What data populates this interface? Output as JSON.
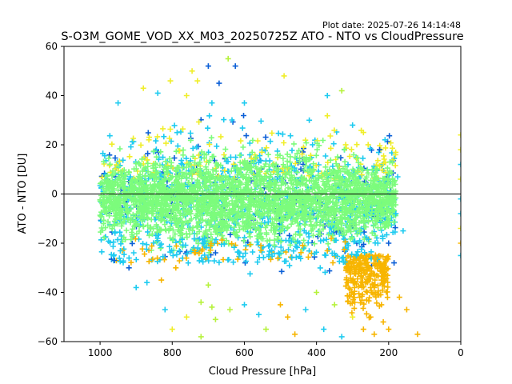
{
  "plot_date": "Plot date: 2025-07-26 14:14:48",
  "chart_data": {
    "type": "scatter",
    "title": "S-O3M_GOME_VOD_XX_M03_20250725Z ATO - NTO vs CloudPressure",
    "xlabel": "Cloud Pressure [hPa]",
    "ylabel": "ATO - NTO [DU]",
    "xlim": [
      1100,
      0
    ],
    "ylim": [
      -60,
      60
    ],
    "x_ticks": [
      1000,
      800,
      600,
      400,
      200,
      0
    ],
    "y_ticks": [
      -60,
      -40,
      -20,
      0,
      20,
      40,
      60
    ],
    "reference_line_y": 0,
    "marker": "+",
    "grid": false,
    "colors": {
      "bulk": "#7cfc7c",
      "cyan": "#1ecbf0",
      "blue": "#0b5fd6",
      "yellow": "#f0ee2a",
      "orange": "#f7b500",
      "lime": "#b6f23c",
      "reference_line": "#000000"
    },
    "clusters": [
      {
        "name": "",
        "color_key": "bulk",
        "x_range": [
          1000,
          200
        ],
        "y_range": [
          -15,
          15
        ]
      },
      {
        "name": "",
        "color_key": "cyan",
        "x_range": [
          1000,
          170
        ],
        "y_range": [
          -25,
          25
        ]
      },
      {
        "name": "",
        "color_key": "orange",
        "x_range": [
          320,
          200
        ],
        "y_range": [
          -50,
          -25
        ]
      }
    ],
    "points": [
      {
        "x": 700,
        "y": 52,
        "c": "blue"
      },
      {
        "x": 625,
        "y": 52,
        "c": "blue"
      },
      {
        "x": 645,
        "y": 55,
        "c": "lime"
      },
      {
        "x": 745,
        "y": 50,
        "c": "yellow"
      },
      {
        "x": 490,
        "y": 48,
        "c": "yellow"
      },
      {
        "x": 670,
        "y": 45,
        "c": "blue"
      },
      {
        "x": 730,
        "y": 46,
        "c": "yellow"
      },
      {
        "x": 880,
        "y": 43,
        "c": "yellow"
      },
      {
        "x": 805,
        "y": 46,
        "c": "yellow"
      },
      {
        "x": 330,
        "y": 42,
        "c": "lime"
      },
      {
        "x": 370,
        "y": 40,
        "c": "cyan"
      },
      {
        "x": 760,
        "y": 40,
        "c": "yellow"
      },
      {
        "x": 840,
        "y": 41,
        "c": "cyan"
      },
      {
        "x": 600,
        "y": 37,
        "c": "cyan"
      },
      {
        "x": 690,
        "y": 37,
        "c": "cyan"
      },
      {
        "x": 950,
        "y": 37,
        "c": "cyan"
      },
      {
        "x": 420,
        "y": 30,
        "c": "cyan"
      },
      {
        "x": 300,
        "y": 28,
        "c": "cyan"
      },
      {
        "x": 270,
        "y": 25,
        "c": "yellow"
      },
      {
        "x": 210,
        "y": 22,
        "c": "cyan"
      },
      {
        "x": 225,
        "y": 18,
        "c": "blue"
      },
      {
        "x": 175,
        "y": 7,
        "c": "cyan"
      },
      {
        "x": 180,
        "y": -8,
        "c": "cyan"
      },
      {
        "x": 160,
        "y": -15,
        "c": "cyan"
      },
      {
        "x": 200,
        "y": -20,
        "c": "blue"
      },
      {
        "x": 185,
        "y": -28,
        "c": "blue"
      },
      {
        "x": 920,
        "y": -30,
        "c": "blue"
      },
      {
        "x": 960,
        "y": -27,
        "c": "blue"
      },
      {
        "x": 900,
        "y": -38,
        "c": "cyan"
      },
      {
        "x": 870,
        "y": -36,
        "c": "cyan"
      },
      {
        "x": 830,
        "y": -35,
        "c": "orange"
      },
      {
        "x": 790,
        "y": -30,
        "c": "orange"
      },
      {
        "x": 700,
        "y": -37,
        "c": "lime"
      },
      {
        "x": 720,
        "y": -44,
        "c": "lime"
      },
      {
        "x": 690,
        "y": -46,
        "c": "lime"
      },
      {
        "x": 820,
        "y": -47,
        "c": "cyan"
      },
      {
        "x": 760,
        "y": -50,
        "c": "yellow"
      },
      {
        "x": 680,
        "y": -51,
        "c": "lime"
      },
      {
        "x": 640,
        "y": -47,
        "c": "lime"
      },
      {
        "x": 600,
        "y": -45,
        "c": "cyan"
      },
      {
        "x": 560,
        "y": -49,
        "c": "cyan"
      },
      {
        "x": 500,
        "y": -45,
        "c": "orange"
      },
      {
        "x": 480,
        "y": -50,
        "c": "orange"
      },
      {
        "x": 430,
        "y": -47,
        "c": "cyan"
      },
      {
        "x": 400,
        "y": -40,
        "c": "lime"
      },
      {
        "x": 350,
        "y": -45,
        "c": "lime"
      },
      {
        "x": 300,
        "y": -50,
        "c": "yellow"
      },
      {
        "x": 270,
        "y": -55,
        "c": "orange"
      },
      {
        "x": 240,
        "y": -57,
        "c": "orange"
      },
      {
        "x": 200,
        "y": -55,
        "c": "orange"
      },
      {
        "x": 120,
        "y": -57,
        "c": "orange"
      },
      {
        "x": 150,
        "y": -47,
        "c": "orange"
      },
      {
        "x": 170,
        "y": -42,
        "c": "orange"
      },
      {
        "x": 800,
        "y": -55,
        "c": "yellow"
      },
      {
        "x": 720,
        "y": -58,
        "c": "lime"
      },
      {
        "x": 540,
        "y": -55,
        "c": "lime"
      },
      {
        "x": 460,
        "y": -57,
        "c": "orange"
      },
      {
        "x": 380,
        "y": -55,
        "c": "cyan"
      },
      {
        "x": 330,
        "y": -58,
        "c": "cyan"
      },
      {
        "x": 260,
        "y": -30,
        "c": "orange"
      },
      {
        "x": 240,
        "y": -38,
        "c": "orange"
      },
      {
        "x": 220,
        "y": -45,
        "c": "orange"
      },
      {
        "x": 280,
        "y": -42,
        "c": "orange"
      },
      {
        "x": 250,
        "y": -50,
        "c": "orange"
      },
      {
        "x": 215,
        "y": -52,
        "c": "orange"
      },
      {
        "x": 0,
        "y": 24,
        "c": "yellow"
      },
      {
        "x": 0,
        "y": 18,
        "c": "yellow"
      },
      {
        "x": 0,
        "y": 12,
        "c": "cyan"
      },
      {
        "x": 0,
        "y": 6,
        "c": "yellow"
      },
      {
        "x": 0,
        "y": -2,
        "c": "cyan"
      },
      {
        "x": 0,
        "y": -8,
        "c": "cyan"
      },
      {
        "x": 0,
        "y": -14,
        "c": "yellow"
      },
      {
        "x": 0,
        "y": -20,
        "c": "orange"
      },
      {
        "x": 0,
        "y": -25,
        "c": "cyan"
      }
    ]
  }
}
